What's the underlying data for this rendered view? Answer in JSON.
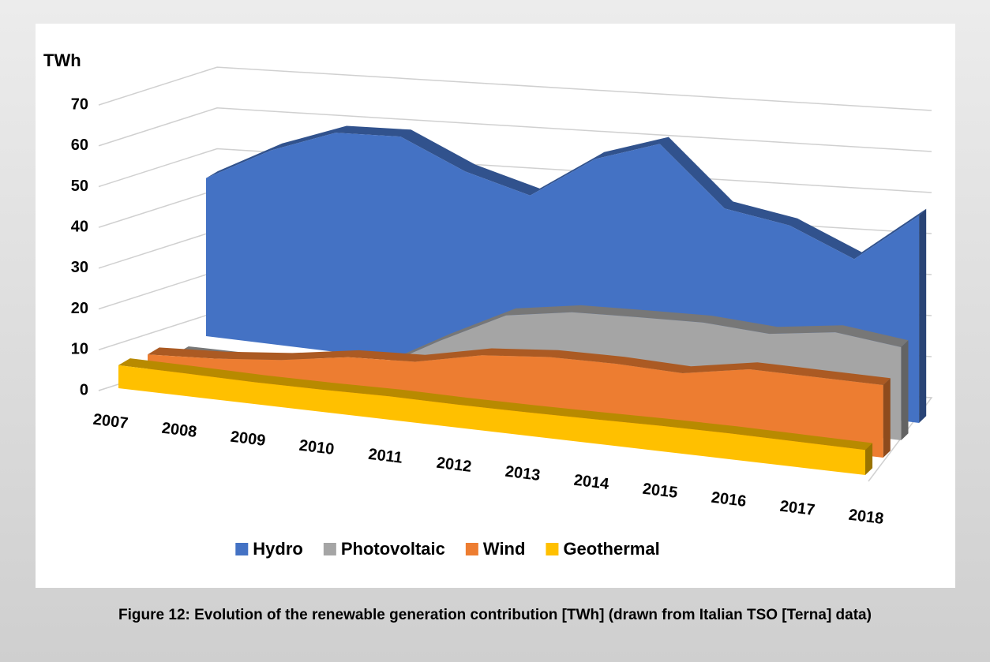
{
  "chart_data": {
    "type": "area3d",
    "y_label": "TWh",
    "caption": "Figure 12: Evolution of the renewable generation contribution [TWh] (drawn from Italian TSO [Terna] data)",
    "categories": [
      "2007",
      "2008",
      "2009",
      "2010",
      "2011",
      "2012",
      "2013",
      "2014",
      "2015",
      "2016",
      "2017",
      "2018"
    ],
    "series": [
      {
        "name": "Hydro",
        "color": "#4472c4",
        "values": [
          38.5,
          47.2,
          53.4,
          54.4,
          47.8,
          43.9,
          54.7,
          60.3,
          46.5,
          44.3,
          38.0,
          50.5
        ]
      },
      {
        "name": "Photovoltaic",
        "color": "#a5a5a5",
        "values": [
          0.04,
          0.2,
          0.7,
          1.9,
          10.8,
          18.9,
          21.6,
          22.3,
          22.9,
          22.1,
          24.4,
          22.7
        ]
      },
      {
        "name": "Wind",
        "color": "#ed7d31",
        "values": [
          4.0,
          4.9,
          6.5,
          9.1,
          9.9,
          13.4,
          14.9,
          15.2,
          14.8,
          17.7,
          17.7,
          17.7
        ]
      },
      {
        "name": "Geothermal",
        "color": "#ffc000",
        "values": [
          5.6,
          5.5,
          5.3,
          5.4,
          5.7,
          5.6,
          5.7,
          5.9,
          6.2,
          6.3,
          6.2,
          6.1
        ]
      }
    ],
    "ylim": [
      0,
      70
    ],
    "yticks": [
      0,
      10,
      20,
      30,
      40,
      50,
      60,
      70
    ],
    "grid": true,
    "legend": "bottom"
  }
}
